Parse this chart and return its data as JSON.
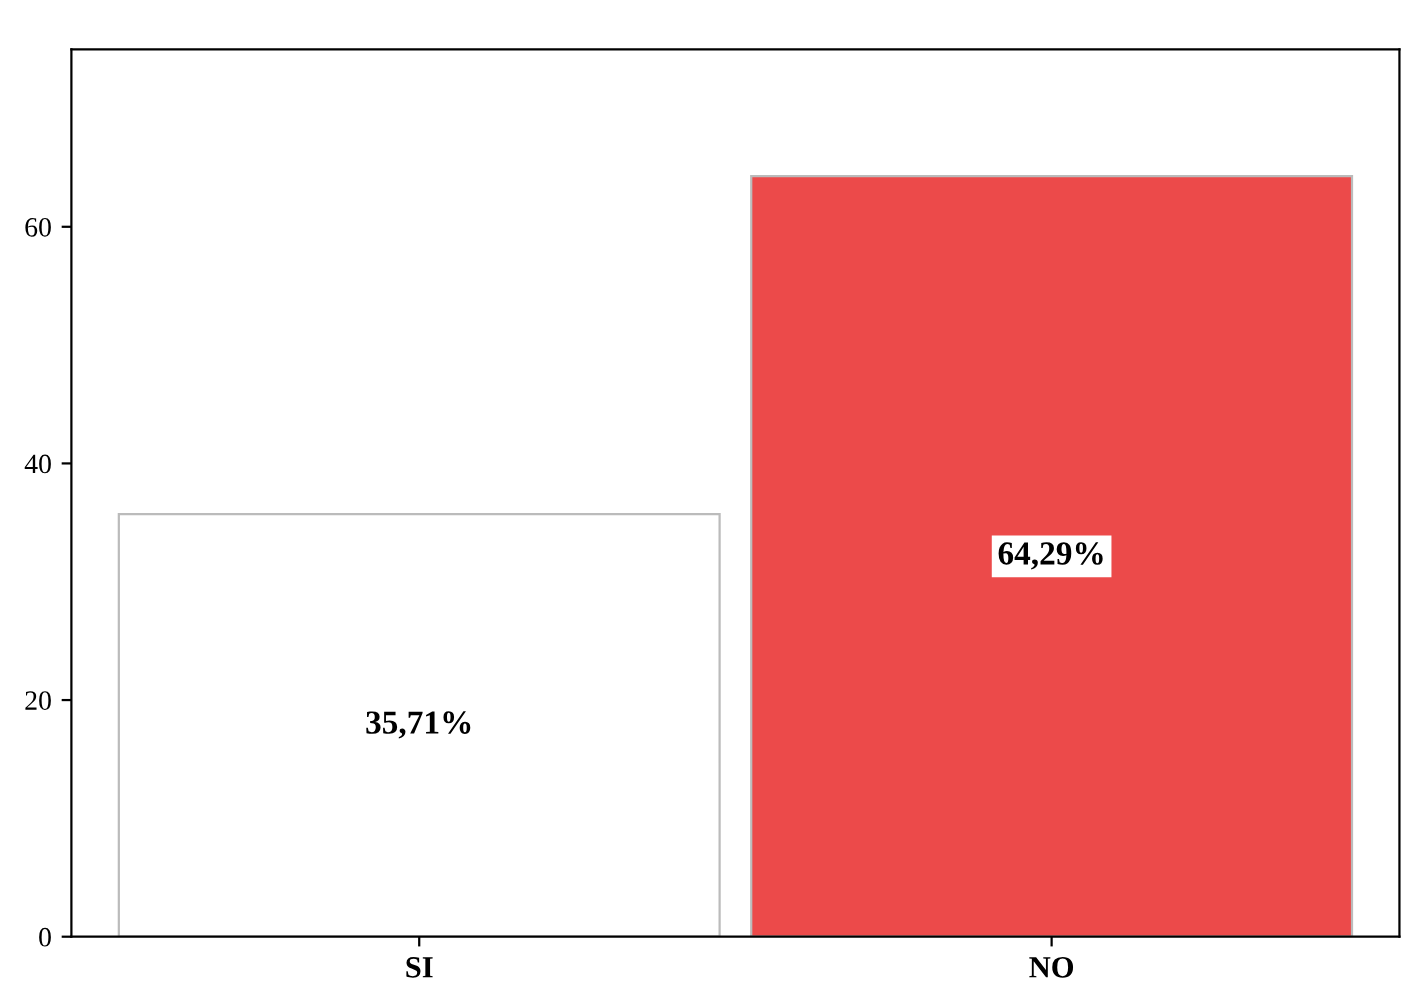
{
  "chart_data": {
    "type": "bar",
    "categories": [
      "SI",
      "NO"
    ],
    "values": [
      35.71,
      64.29
    ],
    "colors": [
      "#ffffff",
      "#ec4a4a"
    ],
    "value_labels": [
      "35,71%",
      "64,29%"
    ],
    "ylim": [
      0,
      75
    ],
    "yticks": [
      0,
      20,
      40,
      60
    ],
    "grid": false,
    "legend": false
  }
}
